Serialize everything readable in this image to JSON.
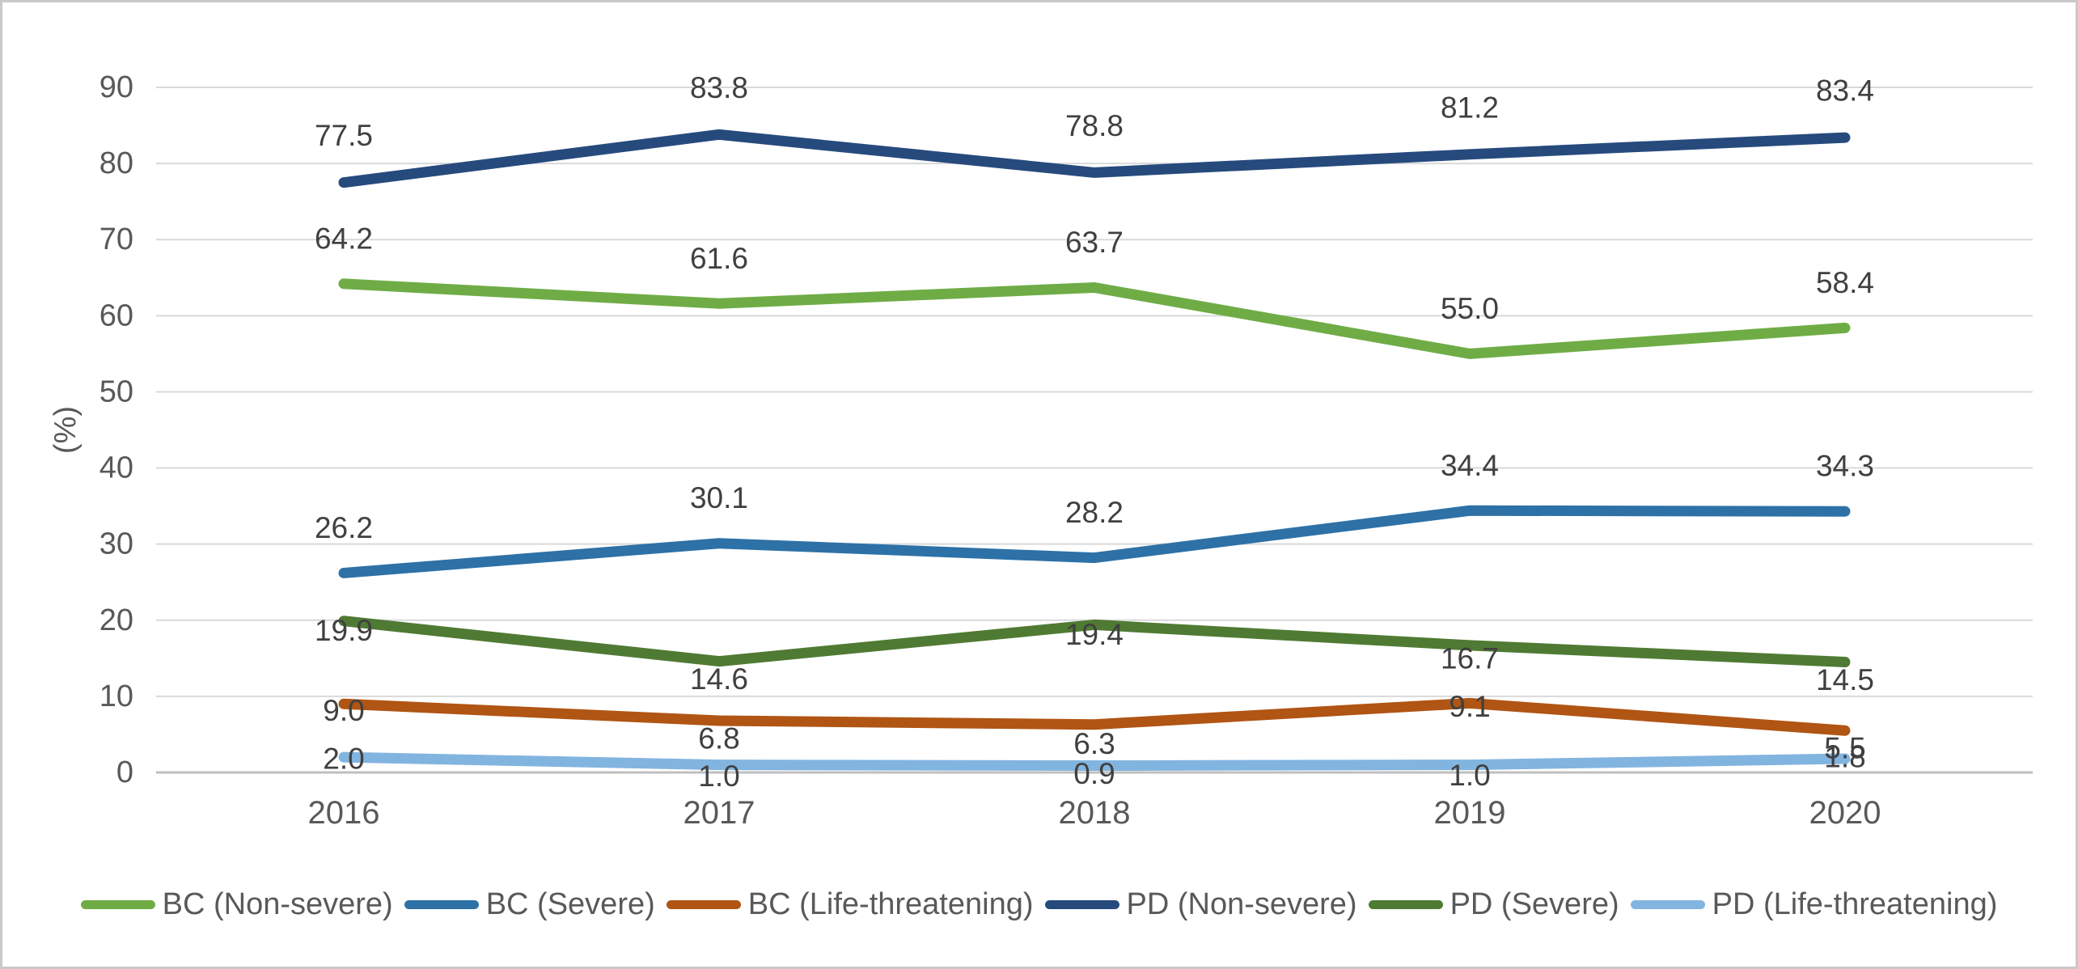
{
  "chart_data": {
    "type": "line",
    "title": "",
    "xlabel": "",
    "ylabel": "(%)",
    "categories": [
      "2016",
      "2017",
      "2018",
      "2019",
      "2020"
    ],
    "ylim": [
      0,
      90
    ],
    "yticks": [
      0,
      10,
      20,
      30,
      40,
      50,
      60,
      70,
      80,
      90
    ],
    "grid": true,
    "legend_position": "bottom",
    "data_labels": true,
    "label_decimals": 1,
    "series": [
      {
        "name": "BC (Non-severe)",
        "color": "#6FAC46",
        "values": [
          64.2,
          61.6,
          63.7,
          55.0,
          58.4
        ]
      },
      {
        "name": "BC (Severe)",
        "color": "#2D71A6",
        "values": [
          26.2,
          30.1,
          28.2,
          34.4,
          34.3
        ]
      },
      {
        "name": "BC (Life-threatening)",
        "color": "#B05514",
        "values": [
          9.0,
          6.8,
          6.3,
          9.1,
          5.5
        ]
      },
      {
        "name": "PD (Non-severe)",
        "color": "#274A7D",
        "values": [
          77.5,
          83.8,
          78.8,
          81.2,
          83.4
        ]
      },
      {
        "name": "PD (Severe)",
        "color": "#4F7A33",
        "values": [
          19.9,
          14.6,
          19.4,
          16.7,
          14.5
        ]
      },
      {
        "name": "PD (Life-threatening)",
        "color": "#82B4E0",
        "values": [
          2.0,
          1.0,
          0.9,
          1.0,
          1.8
        ]
      }
    ],
    "colors": {
      "gridline": "#D9D9D9",
      "zero_line": "#BFBFBF",
      "axis_text": "#595959",
      "data_label_text": "#404040"
    }
  }
}
